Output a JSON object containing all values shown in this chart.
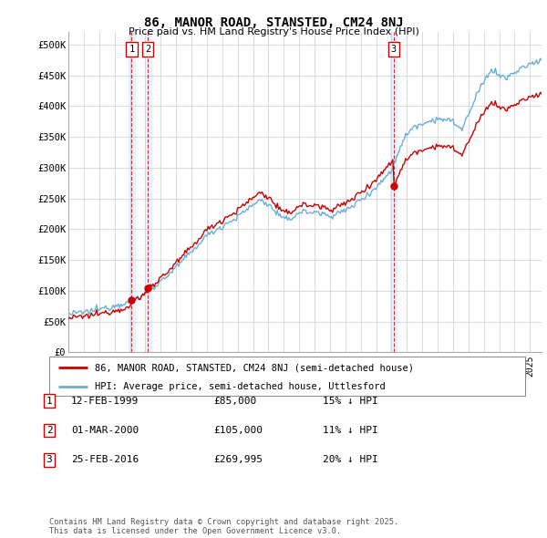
{
  "title": "86, MANOR ROAD, STANSTED, CM24 8NJ",
  "subtitle": "Price paid vs. HM Land Registry's House Price Index (HPI)",
  "ylim": [
    0,
    520000
  ],
  "yticks": [
    0,
    50000,
    100000,
    150000,
    200000,
    250000,
    300000,
    350000,
    400000,
    450000,
    500000
  ],
  "ytick_labels": [
    "£0",
    "£50K",
    "£100K",
    "£150K",
    "£200K",
    "£250K",
    "£300K",
    "£350K",
    "£400K",
    "£450K",
    "£500K"
  ],
  "hpi_color": "#6baed6",
  "price_color": "#cc0000",
  "dashed_line_color": "#cc0000",
  "shaded_column_color": "#ddeeff",
  "background_color": "#ffffff",
  "grid_color": "#cccccc",
  "t_dates": [
    1999.117,
    2000.167,
    2016.142
  ],
  "t_prices": [
    85000,
    105000,
    269995
  ],
  "t_labels": [
    "1",
    "2",
    "3"
  ],
  "xlim": [
    1995.0,
    2025.75
  ],
  "legend_property_label": "86, MANOR ROAD, STANSTED, CM24 8NJ (semi-detached house)",
  "legend_hpi_label": "HPI: Average price, semi-detached house, Uttlesford",
  "footnote": "Contains HM Land Registry data © Crown copyright and database right 2025.\nThis data is licensed under the Open Government Licence v3.0.",
  "table": [
    {
      "num": "1",
      "date": "12-FEB-1999",
      "price": "£85,000",
      "note": "15% ↓ HPI"
    },
    {
      "num": "2",
      "date": "01-MAR-2000",
      "price": "£105,000",
      "note": "11% ↓ HPI"
    },
    {
      "num": "3",
      "date": "25-FEB-2016",
      "price": "£269,995",
      "note": "20% ↓ HPI"
    }
  ]
}
